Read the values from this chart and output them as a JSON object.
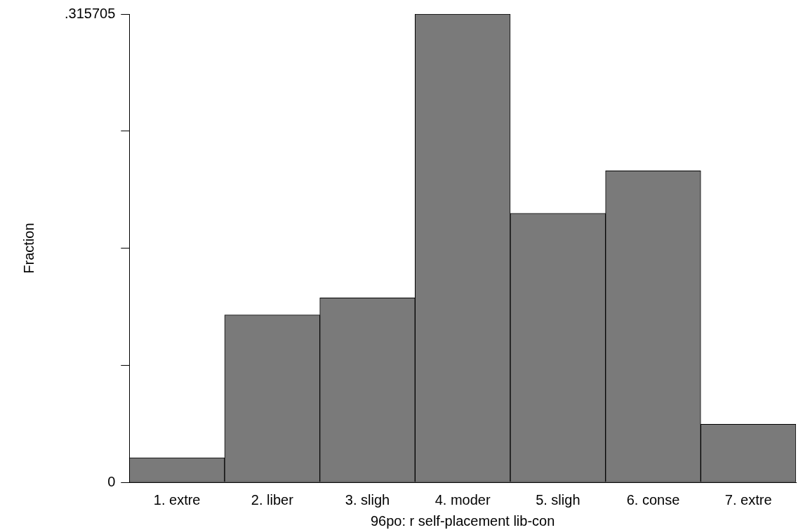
{
  "chart_data": {
    "type": "bar",
    "xlabel": "96po: r self-placement lib-con",
    "ylabel": "Fraction",
    "categories": [
      "1. extre",
      "2. liber",
      "3. sligh",
      "4. moder",
      "5. sligh",
      "6. conse",
      "7. extre"
    ],
    "values": [
      0.0165,
      0.1128,
      0.1243,
      0.315705,
      0.1814,
      0.21,
      0.0391
    ],
    "color": "#7a7a7a",
    "ylim": [
      0,
      0.315705
    ],
    "yticks": [
      0,
      {
        "value": 0.078926,
        "label": null
      },
      {
        "value": 0.157853,
        "label": null
      },
      {
        "value": 0.236779,
        "label": null
      },
      {
        "value": 0.315705,
        "label": ".315705"
      }
    ],
    "grid": false,
    "legend": false
  }
}
